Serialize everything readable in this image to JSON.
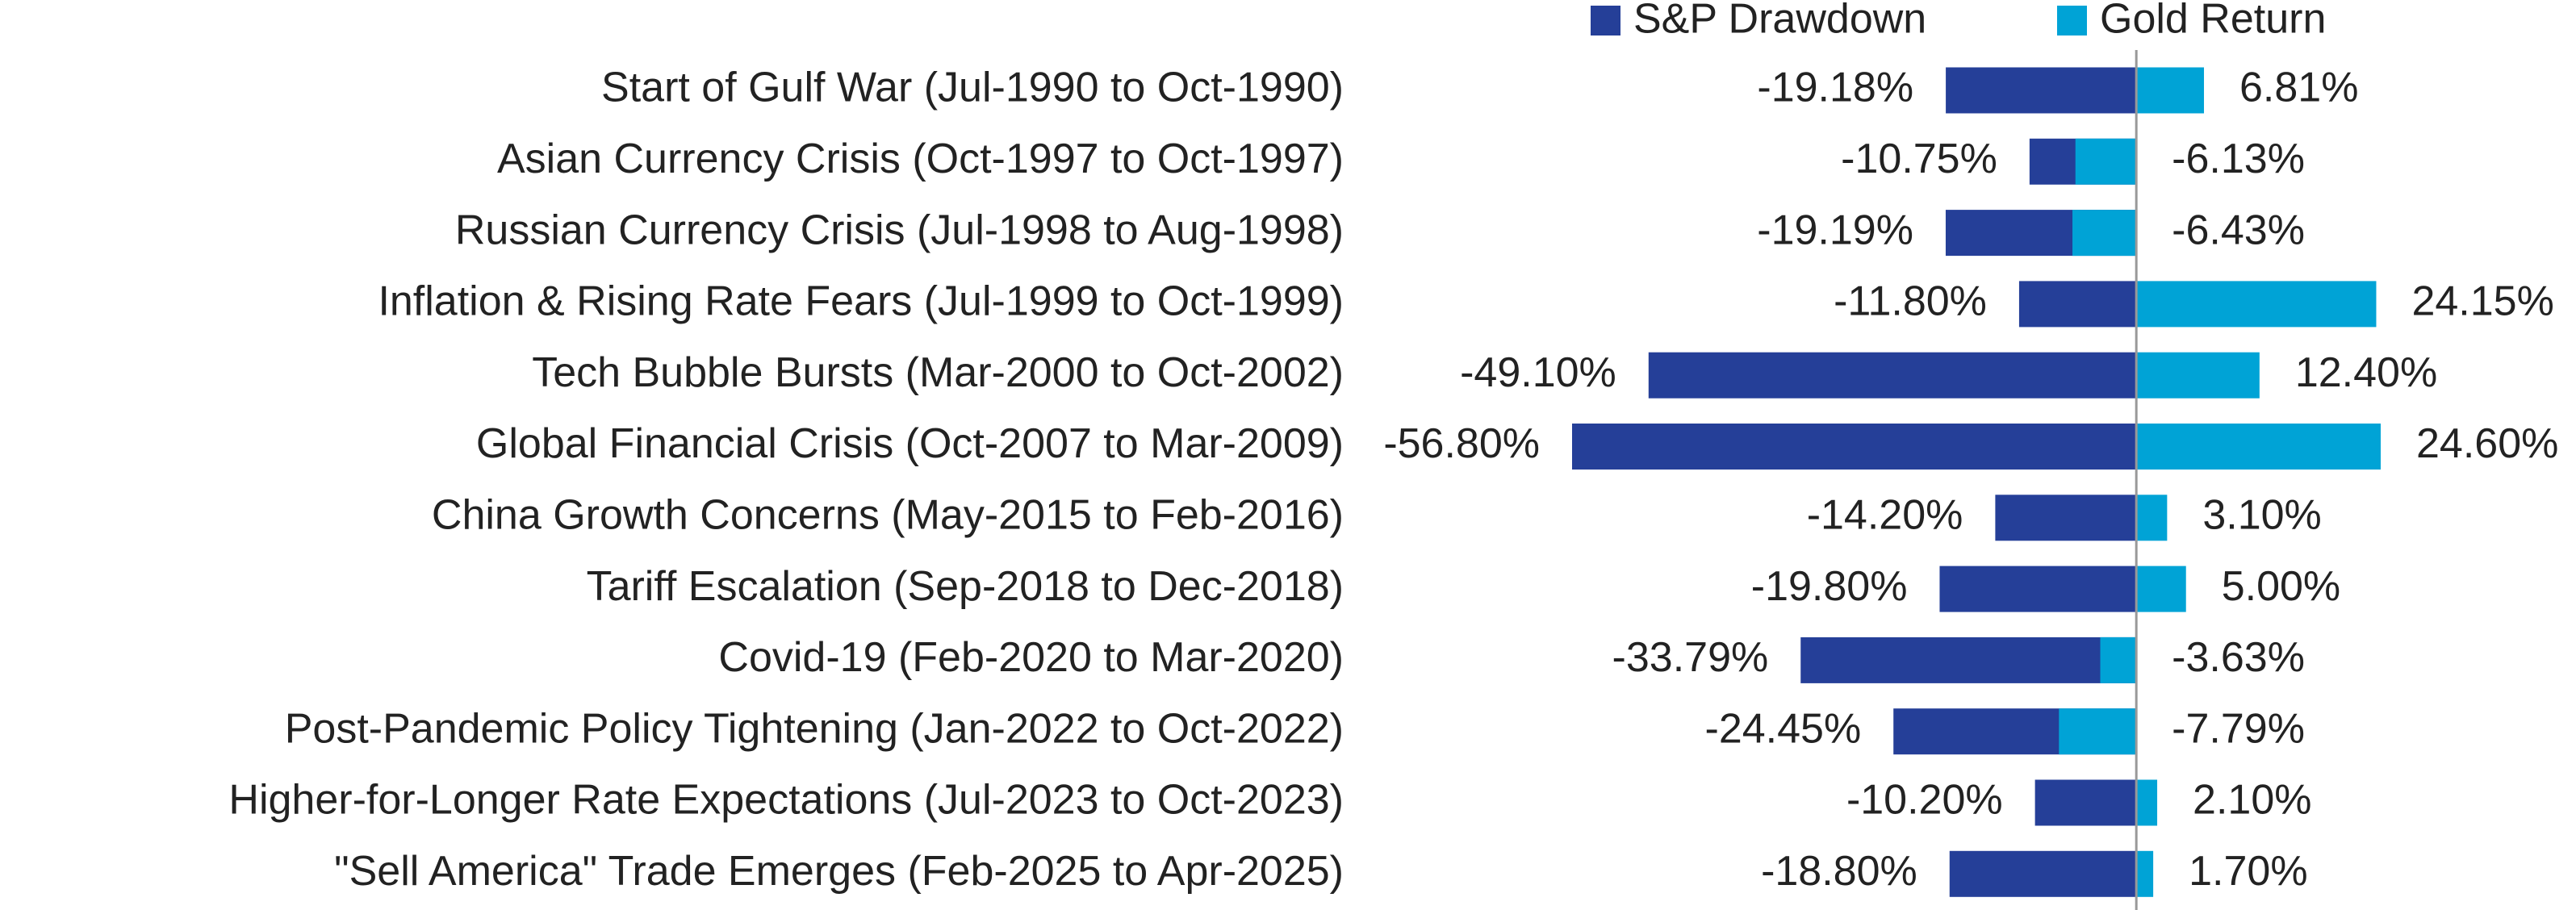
{
  "chart_data": {
    "type": "bar",
    "orientation": "horizontal",
    "categories": [
      "Start of Gulf War (Jul-1990 to Oct-1990)",
      "Asian Currency Crisis (Oct-1997 to Oct-1997)",
      "Russian Currency Crisis (Jul-1998 to Aug-1998)",
      "Inflation & Rising Rate Fears (Jul-1999 to Oct-1999)",
      "Tech Bubble Bursts (Mar-2000 to Oct-2002)",
      "Global Financial Crisis (Oct-2007 to Mar-2009)",
      "China Growth Concerns (May-2015 to Feb-2016)",
      "Tariff Escalation (Sep-2018 to Dec-2018)",
      "Covid-19 (Feb-2020 to Mar-2020)",
      "Post-Pandemic Policy Tightening (Jan-2022 to Oct-2022)",
      "Higher-for-Longer Rate Expectations (Jul-2023 to Oct-2023)",
      "\"Sell America\" Trade Emerges (Feb-2025 to Apr-2025)"
    ],
    "series": [
      {
        "name": "S&P Drawdown",
        "color": "#253f98",
        "values": [
          -19.18,
          -10.75,
          -19.19,
          -11.8,
          -49.1,
          -56.8,
          -14.2,
          -19.8,
          -33.79,
          -24.45,
          -10.2,
          -18.8
        ],
        "value_labels": [
          "-19.18%",
          "-10.75%",
          "-19.19%",
          "-11.80%",
          "-49.10%",
          "-56.80%",
          "-14.20%",
          "-19.80%",
          "-33.79%",
          "-24.45%",
          "-10.20%",
          "-18.80%"
        ]
      },
      {
        "name": "Gold Return",
        "color": "#00a3d6",
        "values": [
          6.81,
          -6.13,
          -6.43,
          24.15,
          12.4,
          24.6,
          3.1,
          5.0,
          -3.63,
          -7.79,
          2.1,
          1.7
        ],
        "value_labels": [
          "6.81%",
          "-6.13%",
          "-6.43%",
          "24.15%",
          "12.40%",
          "24.60%",
          "3.10%",
          "5.00%",
          "-3.63%",
          "-7.79%",
          "2.10%",
          "1.70%"
        ]
      }
    ],
    "legend": "top-right"
  }
}
